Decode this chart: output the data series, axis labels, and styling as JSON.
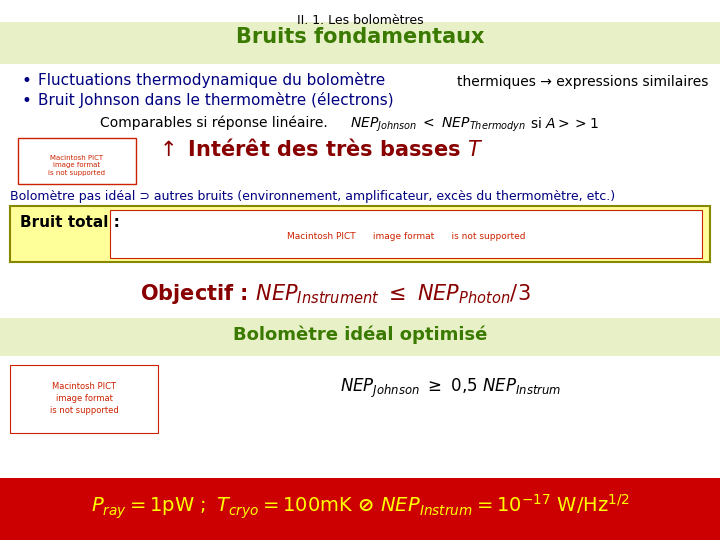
{
  "title": "II. 1. Les bolomètres",
  "section1_title": "Bruits fondamentaux",
  "section1_bg": "#e8f0c8",
  "bullet1": "Fluctuations thermodynamique du bolomètre",
  "bullet2": "Bruit Johnson dans le thermomètre (électrons)",
  "bullet_color": "#000080",
  "thermiques_text": "thermiques → expressions similaires",
  "bolom_non_ideal": "Bolomètre pas idéal ⊃ autres bruits (environnement, amplificateur, excès du thermomètre, etc.)",
  "bruit_total_label": "Bruit total :",
  "bruit_total_bg": "#ffff99",
  "section2_title": "Bolomètre idéal optimisé",
  "section2_bg": "#e8f0c8",
  "bottom_bg": "#cc0000",
  "bottom_text_color": "#ffff00",
  "green_color": "#3a7a00",
  "dark_red": "#880000",
  "red_color": "#cc2200",
  "navy": "#000080",
  "black": "#000000",
  "white": "#ffffff",
  "olive": "#888800"
}
